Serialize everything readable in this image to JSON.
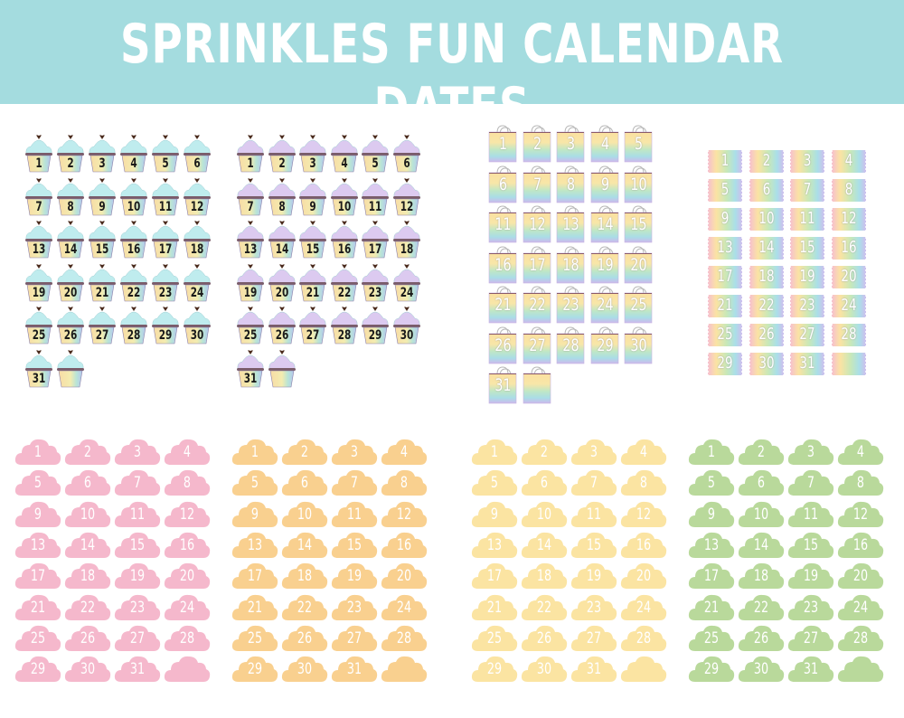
{
  "title": "SPRINKLES FUN CALENDAR DATES",
  "colors": {
    "header": "#a4dcdf",
    "frosting_blue": "#bfecee",
    "frosting_purple": "#dccaf0",
    "heart": "#4a2a1c",
    "cloud_pink": "#f5b8cc",
    "cloud_orange": "#f9d08f",
    "cloud_yellow": "#fbe4a2",
    "cloud_green": "#b9d99b"
  },
  "sets": [
    {
      "id": "cupcakes-blue",
      "shape": "cupcake",
      "frosting": "#bfecee",
      "blanks": 1,
      "labels": [
        "1",
        "2",
        "3",
        "4",
        "5",
        "6",
        "7",
        "8",
        "9",
        "10",
        "11",
        "12",
        "13",
        "14",
        "15",
        "16",
        "17",
        "18",
        "19",
        "20",
        "21",
        "22",
        "23",
        "24",
        "25",
        "26",
        "27",
        "28",
        "29",
        "30",
        "31"
      ]
    },
    {
      "id": "cupcakes-purple",
      "shape": "cupcake",
      "frosting": "#dccaf0",
      "blanks": 1,
      "labels": [
        "1",
        "2",
        "3",
        "4",
        "5",
        "6",
        "7",
        "8",
        "9",
        "10",
        "11",
        "12",
        "13",
        "14",
        "15",
        "16",
        "17",
        "18",
        "19",
        "20",
        "21",
        "22",
        "23",
        "24",
        "25",
        "26",
        "27",
        "28",
        "29",
        "30",
        "31"
      ]
    },
    {
      "id": "rainbow-bags",
      "shape": "bag",
      "blanks": 1,
      "labels": [
        "1",
        "2",
        "3",
        "4",
        "5",
        "6",
        "7",
        "8",
        "9",
        "10",
        "11",
        "12",
        "13",
        "14",
        "15",
        "16",
        "17",
        "18",
        "19",
        "20",
        "21",
        "22",
        "23",
        "24",
        "25",
        "26",
        "27",
        "28",
        "29",
        "30",
        "31"
      ]
    },
    {
      "id": "rainbow-ribbons",
      "shape": "ribbon",
      "blanks": 1,
      "labels": [
        "1",
        "2",
        "3",
        "4",
        "5",
        "6",
        "7",
        "8",
        "9",
        "10",
        "11",
        "12",
        "13",
        "14",
        "15",
        "16",
        "17",
        "18",
        "19",
        "20",
        "21",
        "22",
        "23",
        "24",
        "25",
        "26",
        "27",
        "28",
        "29",
        "30",
        "31"
      ]
    },
    {
      "id": "clouds-pink",
      "shape": "cloud",
      "color": "#f5b8cc",
      "blanks": 1,
      "labels": [
        "1",
        "2",
        "3",
        "4",
        "5",
        "6",
        "7",
        "8",
        "9",
        "10",
        "11",
        "12",
        "13",
        "14",
        "15",
        "16",
        "17",
        "18",
        "19",
        "20",
        "21",
        "22",
        "23",
        "24",
        "25",
        "26",
        "27",
        "28",
        "29",
        "30",
        "31"
      ]
    },
    {
      "id": "clouds-orange",
      "shape": "cloud",
      "color": "#f9d08f",
      "blanks": 1,
      "labels": [
        "1",
        "2",
        "3",
        "4",
        "5",
        "6",
        "7",
        "8",
        "9",
        "10",
        "11",
        "12",
        "13",
        "14",
        "15",
        "16",
        "17",
        "18",
        "19",
        "20",
        "21",
        "22",
        "23",
        "24",
        "25",
        "26",
        "27",
        "28",
        "29",
        "30",
        "31"
      ]
    },
    {
      "id": "clouds-yellow",
      "shape": "cloud",
      "color": "#fbe4a2",
      "blanks": 1,
      "labels": [
        "1",
        "2",
        "3",
        "4",
        "5",
        "6",
        "7",
        "8",
        "9",
        "10",
        "11",
        "12",
        "13",
        "14",
        "15",
        "16",
        "17",
        "18",
        "19",
        "20",
        "21",
        "22",
        "23",
        "24",
        "25",
        "26",
        "27",
        "28",
        "29",
        "30",
        "31"
      ]
    },
    {
      "id": "clouds-green",
      "shape": "cloud",
      "color": "#b9d99b",
      "blanks": 1,
      "labels": [
        "1",
        "2",
        "3",
        "4",
        "5",
        "6",
        "7",
        "8",
        "9",
        "10",
        "11",
        "12",
        "13",
        "14",
        "15",
        "16",
        "17",
        "18",
        "19",
        "20",
        "21",
        "22",
        "23",
        "24",
        "25",
        "26",
        "27",
        "28",
        "29",
        "30",
        "31"
      ]
    }
  ]
}
